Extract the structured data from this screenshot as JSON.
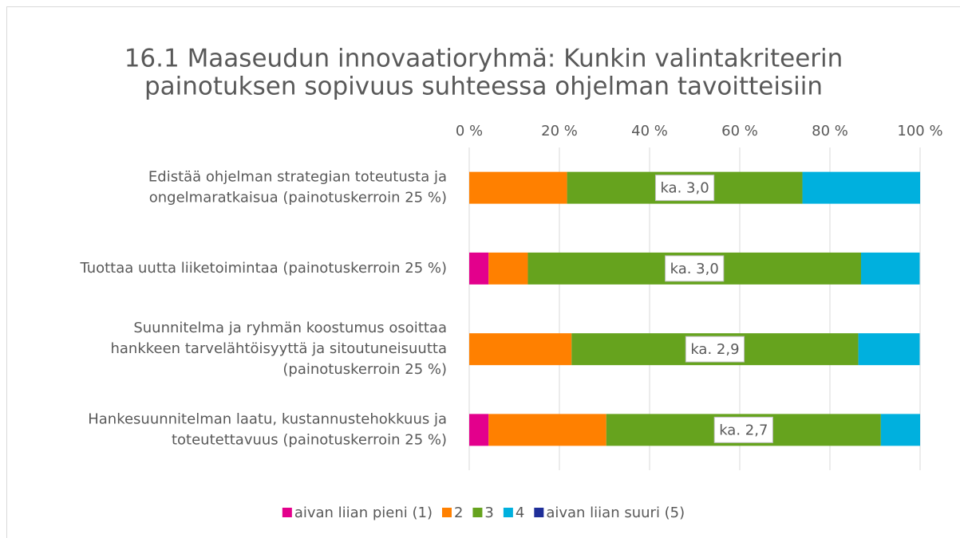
{
  "chart_data": {
    "type": "stacked_barh",
    "title": [
      "16.1 Maaseudun innovaatioryhmä: Kunkin valintakriteerin",
      "painotuksen sopivuus suhteessa ohjelman tavoitteisiin"
    ],
    "categories": [
      "Edistää ohjelman strategian toteutusta ja\nongelmaratkaisua (painotuskerroin 25 %)",
      "Tuottaa uutta liiketoimintaa (painotuskerroin 25 %)",
      "Suunnitelma ja ryhmän koostumus osoittaa\nhankkeen tarvelähtöisyyttä ja sitoutuneisuutta\n(painotuskerroin 25 %)",
      "Hankesuunnitelman laatu, kustannustehokkuus ja\ntoteutettavuus (painotuskerroin 25 %)"
    ],
    "series": [
      {
        "name": "aivan liian pieni (1)",
        "color": "#e3008c",
        "values": [
          0,
          4.3,
          0,
          4.3
        ]
      },
      {
        "name": "2",
        "color": "#ff8000",
        "values": [
          21.7,
          8.7,
          22.7,
          26.1
        ]
      },
      {
        "name": "3",
        "color": "#66a31e",
        "values": [
          52.2,
          73.9,
          63.6,
          60.9
        ]
      },
      {
        "name": "4",
        "color": "#00b0de",
        "values": [
          26.1,
          13.0,
          13.6,
          8.7
        ]
      },
      {
        "name": "aivan liian suuri (5)",
        "color": "#1f2f99",
        "values": [
          0,
          0,
          0,
          0
        ]
      }
    ],
    "annotations": [
      "ka. 3,0",
      "ka. 3,0",
      "ka. 2,9",
      "ka. 2,7"
    ],
    "annotation_series": 2,
    "xlim": [
      0,
      100
    ],
    "xticks": [
      {
        "value": 0,
        "label": "0 %"
      },
      {
        "value": 20,
        "label": "20 %"
      },
      {
        "value": 40,
        "label": "40 %"
      },
      {
        "value": 60,
        "label": "60 %"
      },
      {
        "value": 80,
        "label": "80 %"
      },
      {
        "value": 100,
        "label": "100 %"
      }
    ],
    "grid": true,
    "legend": "bottom"
  }
}
